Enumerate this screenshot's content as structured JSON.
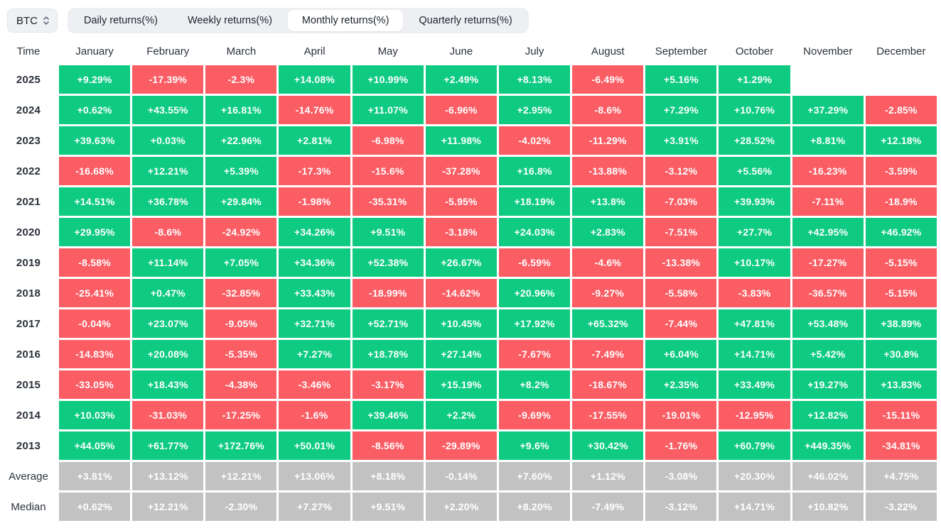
{
  "selector": {
    "label": "BTC",
    "icon": "updown-chevron-icon"
  },
  "tabs": {
    "items": [
      {
        "label": "Daily returns(%)"
      },
      {
        "label": "Weekly returns(%)"
      },
      {
        "label": "Monthly returns(%)"
      },
      {
        "label": "Quarterly returns(%)"
      }
    ],
    "active_index": 2
  },
  "columns": {
    "time_header": "Time",
    "months": [
      "January",
      "February",
      "March",
      "April",
      "May",
      "June",
      "July",
      "August",
      "September",
      "October",
      "November",
      "December"
    ]
  },
  "colors": {
    "positive": "#0ecb81",
    "negative": "#fa5d64",
    "summary": "#c2c2c2",
    "tabbar_bg": "#edeff3",
    "active_tab_bg": "#ffffff",
    "text_dark": "#2b3139"
  },
  "rows": [
    {
      "label": "2025",
      "kind": "year",
      "cells": [
        "+9.29%",
        "-17.39%",
        "-2.3%",
        "+14.08%",
        "+10.99%",
        "+2.49%",
        "+8.13%",
        "-6.49%",
        "+5.16%",
        "+1.29%",
        "",
        ""
      ]
    },
    {
      "label": "2024",
      "kind": "year",
      "cells": [
        "+0.62%",
        "+43.55%",
        "+16.81%",
        "-14.76%",
        "+11.07%",
        "-6.96%",
        "+2.95%",
        "-8.6%",
        "+7.29%",
        "+10.76%",
        "+37.29%",
        "-2.85%"
      ]
    },
    {
      "label": "2023",
      "kind": "year",
      "cells": [
        "+39.63%",
        "+0.03%",
        "+22.96%",
        "+2.81%",
        "-6.98%",
        "+11.98%",
        "-4.02%",
        "-11.29%",
        "+3.91%",
        "+28.52%",
        "+8.81%",
        "+12.18%"
      ]
    },
    {
      "label": "2022",
      "kind": "year",
      "cells": [
        "-16.68%",
        "+12.21%",
        "+5.39%",
        "-17.3%",
        "-15.6%",
        "-37.28%",
        "+16.8%",
        "-13.88%",
        "-3.12%",
        "+5.56%",
        "-16.23%",
        "-3.59%"
      ]
    },
    {
      "label": "2021",
      "kind": "year",
      "cells": [
        "+14.51%",
        "+36.78%",
        "+29.84%",
        "-1.98%",
        "-35.31%",
        "-5.95%",
        "+18.19%",
        "+13.8%",
        "-7.03%",
        "+39.93%",
        "-7.11%",
        "-18.9%"
      ]
    },
    {
      "label": "2020",
      "kind": "year",
      "cells": [
        "+29.95%",
        "-8.6%",
        "-24.92%",
        "+34.26%",
        "+9.51%",
        "-3.18%",
        "+24.03%",
        "+2.83%",
        "-7.51%",
        "+27.7%",
        "+42.95%",
        "+46.92%"
      ]
    },
    {
      "label": "2019",
      "kind": "year",
      "cells": [
        "-8.58%",
        "+11.14%",
        "+7.05%",
        "+34.36%",
        "+52.38%",
        "+26.67%",
        "-6.59%",
        "-4.6%",
        "-13.38%",
        "+10.17%",
        "-17.27%",
        "-5.15%"
      ]
    },
    {
      "label": "2018",
      "kind": "year",
      "cells": [
        "-25.41%",
        "+0.47%",
        "-32.85%",
        "+33.43%",
        "-18.99%",
        "-14.62%",
        "+20.96%",
        "-9.27%",
        "-5.58%",
        "-3.83%",
        "-36.57%",
        "-5.15%"
      ]
    },
    {
      "label": "2017",
      "kind": "year",
      "cells": [
        "-0.04%",
        "+23.07%",
        "-9.05%",
        "+32.71%",
        "+52.71%",
        "+10.45%",
        "+17.92%",
        "+65.32%",
        "-7.44%",
        "+47.81%",
        "+53.48%",
        "+38.89%"
      ]
    },
    {
      "label": "2016",
      "kind": "year",
      "cells": [
        "-14.83%",
        "+20.08%",
        "-5.35%",
        "+7.27%",
        "+18.78%",
        "+27.14%",
        "-7.67%",
        "-7.49%",
        "+6.04%",
        "+14.71%",
        "+5.42%",
        "+30.8%"
      ]
    },
    {
      "label": "2015",
      "kind": "year",
      "cells": [
        "-33.05%",
        "+18.43%",
        "-4.38%",
        "-3.46%",
        "-3.17%",
        "+15.19%",
        "+8.2%",
        "-18.67%",
        "+2.35%",
        "+33.49%",
        "+19.27%",
        "+13.83%"
      ]
    },
    {
      "label": "2014",
      "kind": "year",
      "cells": [
        "+10.03%",
        "-31.03%",
        "-17.25%",
        "-1.6%",
        "+39.46%",
        "+2.2%",
        "-9.69%",
        "-17.55%",
        "-19.01%",
        "-12.95%",
        "+12.82%",
        "-15.11%"
      ]
    },
    {
      "label": "2013",
      "kind": "year",
      "cells": [
        "+44.05%",
        "+61.77%",
        "+172.76%",
        "+50.01%",
        "-8.56%",
        "-29.89%",
        "+9.6%",
        "+30.42%",
        "-1.76%",
        "+60.79%",
        "+449.35%",
        "-34.81%"
      ]
    },
    {
      "label": "Average",
      "kind": "summary",
      "cells": [
        "+3.81%",
        "+13.12%",
        "+12.21%",
        "+13.06%",
        "+8.18%",
        "-0.14%",
        "+7.60%",
        "+1.12%",
        "-3.08%",
        "+20.30%",
        "+46.02%",
        "+4.75%"
      ]
    },
    {
      "label": "Median",
      "kind": "summary",
      "cells": [
        "+0.62%",
        "+12.21%",
        "-2.30%",
        "+7.27%",
        "+9.51%",
        "+2.20%",
        "+8.20%",
        "-7.49%",
        "-3.12%",
        "+14.71%",
        "+10.82%",
        "-3.22%"
      ]
    }
  ]
}
